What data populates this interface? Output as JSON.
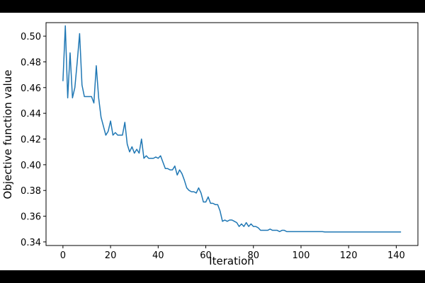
{
  "chart_data": {
    "type": "line",
    "x_label": "Iteration",
    "y_label": "Objective function value",
    "xlim": [
      -7.1,
      149.1
    ],
    "ylim": [
      0.3372,
      0.5105
    ],
    "xticks": [
      0,
      20,
      40,
      60,
      80,
      100,
      120,
      140
    ],
    "yticks": [
      0.34,
      0.36,
      0.38,
      {
        "value": 0.4,
        "label": "0.40"
      },
      0.42,
      0.44,
      0.46,
      0.48,
      {
        "value": 0.5,
        "label": "0.50"
      }
    ],
    "series": [
      {
        "color": "#1f77b4",
        "values": [
          0.465,
          0.508,
          0.452,
          0.487,
          0.452,
          0.46,
          0.48,
          0.502,
          0.462,
          0.453,
          0.453,
          0.453,
          0.453,
          0.448,
          0.477,
          0.452,
          0.437,
          0.43,
          0.423,
          0.426,
          0.434,
          0.423,
          0.425,
          0.423,
          0.423,
          0.423,
          0.433,
          0.416,
          0.41,
          0.414,
          0.409,
          0.412,
          0.409,
          0.42,
          0.405,
          0.407,
          0.405,
          0.405,
          0.405,
          0.406,
          0.405,
          0.407,
          0.402,
          0.397,
          0.397,
          0.396,
          0.396,
          0.399,
          0.392,
          0.396,
          0.393,
          0.388,
          0.382,
          0.38,
          0.379,
          0.379,
          0.378,
          0.382,
          0.378,
          0.371,
          0.371,
          0.375,
          0.37,
          0.37,
          0.369,
          0.369,
          0.364,
          0.356,
          0.357,
          0.356,
          0.357,
          0.357,
          0.356,
          0.355,
          0.352,
          0.354,
          0.352,
          0.355,
          0.352,
          0.354,
          0.352,
          0.352,
          0.351,
          0.349,
          0.349,
          0.349,
          0.349,
          0.35,
          0.349,
          0.349,
          0.349,
          0.348,
          0.349,
          0.349,
          0.348,
          0.348,
          0.348,
          0.348,
          0.348,
          0.348,
          0.348,
          0.348,
          0.348,
          0.348,
          0.348,
          0.348,
          0.348,
          0.348,
          0.348,
          0.348,
          0.3477,
          0.3477,
          0.3477,
          0.3477,
          0.3477,
          0.3477,
          0.3477,
          0.3477,
          0.3477,
          0.3477,
          0.3477,
          0.3477,
          0.3477,
          0.3477,
          0.3477,
          0.3477,
          0.3477,
          0.3477,
          0.3477,
          0.3477,
          0.3477,
          0.3477,
          0.3477,
          0.3477,
          0.3477,
          0.3477,
          0.3477,
          0.3477,
          0.3477,
          0.3477,
          0.3477,
          0.3477,
          0.3477
        ]
      }
    ]
  }
}
